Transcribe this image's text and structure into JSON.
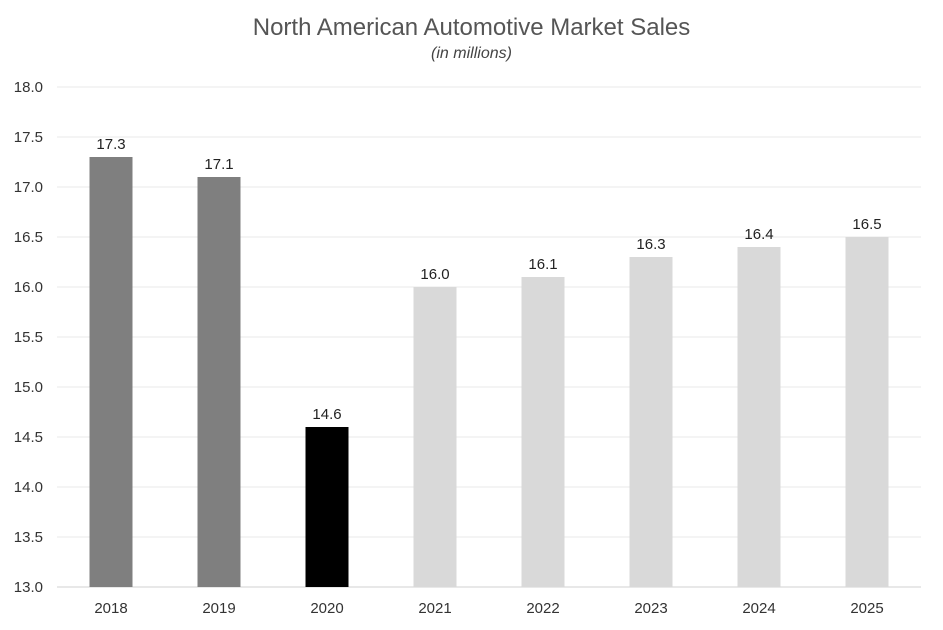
{
  "chart_data": {
    "type": "bar",
    "title": "North American Automotive Market Sales",
    "subtitle": "(in millions)",
    "xlabel": "",
    "ylabel": "",
    "categories": [
      "2018",
      "2019",
      "2020",
      "2021",
      "2022",
      "2023",
      "2024",
      "2025"
    ],
    "values": [
      17.3,
      17.1,
      14.6,
      16.0,
      16.1,
      16.3,
      16.4,
      16.5
    ],
    "data_labels": [
      "17.3",
      "17.1",
      "14.6",
      "16.0",
      "16.1",
      "16.3",
      "16.4",
      "16.5"
    ],
    "colors": [
      "#7f7f7f",
      "#7f7f7f",
      "#000000",
      "#d9d9d9",
      "#d9d9d9",
      "#d9d9d9",
      "#d9d9d9",
      "#d9d9d9"
    ],
    "ylim": [
      13.0,
      18.0
    ],
    "yticks": [
      "13.0",
      "13.5",
      "14.0",
      "14.5",
      "15.0",
      "15.5",
      "16.0",
      "16.5",
      "17.0",
      "17.5",
      "18.0"
    ],
    "grid": true,
    "legend": "none"
  }
}
